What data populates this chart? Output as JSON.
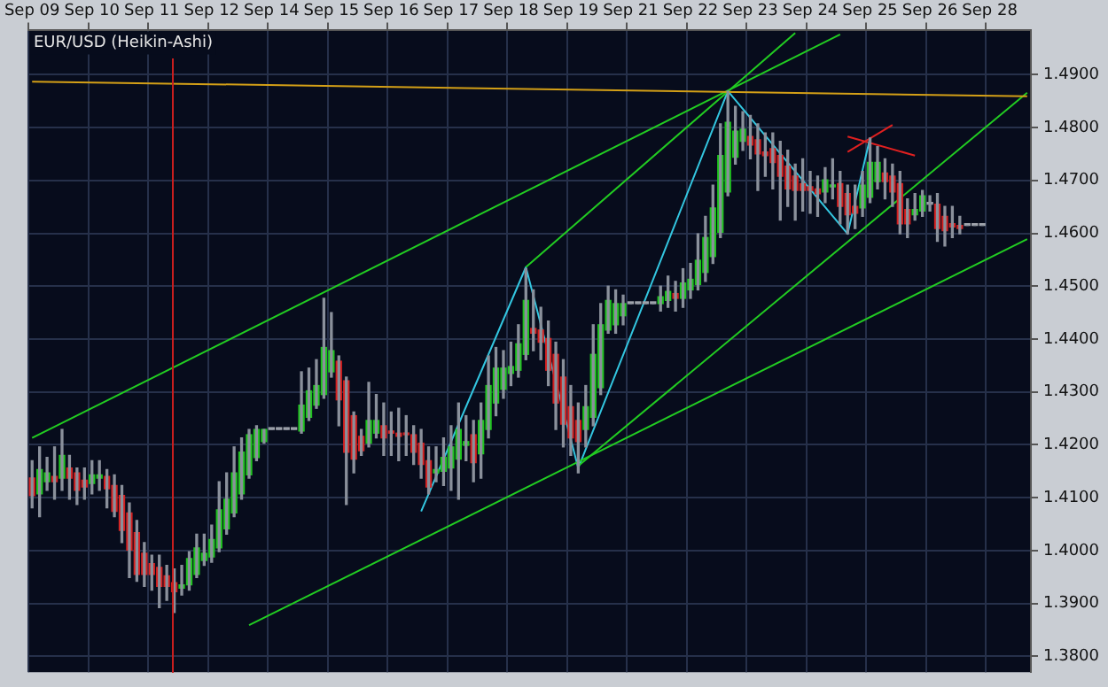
{
  "chart_data": {
    "type": "candlestick",
    "title": "EUR/USD (Heikin-Ashi)",
    "categories": [
      "Sep 09",
      null,
      null,
      null,
      null,
      null,
      null,
      null,
      "Sep 10",
      null,
      null,
      null,
      null,
      null,
      null,
      null,
      "Sep 11",
      null,
      null,
      null,
      null,
      null,
      null,
      null,
      "Sep 12",
      null,
      null,
      null,
      null,
      null,
      null,
      null,
      "Sep 14",
      null,
      null,
      null,
      null,
      null,
      null,
      null,
      "Sep 15",
      null,
      null,
      null,
      null,
      null,
      null,
      null,
      "Sep 16",
      null,
      null,
      null,
      null,
      null,
      null,
      null,
      "Sep 17",
      null,
      null,
      null,
      null,
      null,
      null,
      null,
      "Sep 18",
      null,
      null,
      null,
      null,
      null,
      null,
      null,
      "Sep 19",
      null,
      null,
      null,
      null,
      null,
      null,
      null,
      "Sep 21",
      null,
      null,
      null,
      null,
      null,
      null,
      null,
      "Sep 22",
      null,
      null,
      null,
      null,
      null,
      null,
      null,
      "Sep 23",
      null,
      null,
      null,
      null,
      null,
      null,
      null,
      "Sep 24",
      null,
      null,
      null,
      null,
      null,
      null,
      null,
      "Sep 25",
      null,
      null,
      null,
      null,
      null,
      null,
      null,
      "Sep 26",
      null,
      null,
      null,
      null,
      null,
      null,
      null,
      "Sep 28",
      null,
      null,
      null,
      null,
      null
    ],
    "ohlc": [
      [
        1.4137,
        1.417,
        1.4081,
        1.4104
      ],
      [
        1.4107,
        1.4196,
        1.4064,
        1.4153
      ],
      [
        1.413,
        1.4176,
        1.4114,
        1.4147
      ],
      [
        1.414,
        1.4196,
        1.4097,
        1.413
      ],
      [
        1.4137,
        1.4229,
        1.4114,
        1.418
      ],
      [
        1.4156,
        1.418,
        1.4097,
        1.4137
      ],
      [
        1.4147,
        1.4156,
        1.4087,
        1.4114
      ],
      [
        1.4133,
        1.4156,
        1.4097,
        1.412
      ],
      [
        1.4127,
        1.417,
        1.4107,
        1.4143
      ],
      [
        1.4137,
        1.417,
        1.4114,
        1.4143
      ],
      [
        1.414,
        1.4153,
        1.4081,
        1.4117
      ],
      [
        1.4123,
        1.4143,
        1.4064,
        1.4074
      ],
      [
        1.4104,
        1.4123,
        1.4015,
        1.4038
      ],
      [
        1.4071,
        1.409,
        1.3949,
        1.4001
      ],
      [
        1.4034,
        1.4057,
        1.3942,
        1.3955
      ],
      [
        1.3995,
        1.4015,
        1.3932,
        1.3955
      ],
      [
        1.3975,
        1.3991,
        1.3925,
        1.3955
      ],
      [
        1.3968,
        1.3991,
        1.3892,
        1.3932
      ],
      [
        1.3952,
        1.3972,
        1.3906,
        1.3932
      ],
      [
        1.3939,
        1.3965,
        1.3883,
        1.3922
      ],
      [
        1.3929,
        1.3972,
        1.3916,
        1.3935
      ],
      [
        1.3935,
        1.3998,
        1.3925,
        1.3985
      ],
      [
        1.3955,
        1.4031,
        1.3949,
        1.4005
      ],
      [
        1.3981,
        1.4031,
        1.3972,
        1.3995
      ],
      [
        1.3988,
        1.4048,
        1.3978,
        1.4021
      ],
      [
        1.4005,
        1.413,
        1.3998,
        1.4077
      ],
      [
        1.4041,
        1.4147,
        1.4031,
        1.4097
      ],
      [
        1.4071,
        1.4196,
        1.4064,
        1.4147
      ],
      [
        1.4107,
        1.4213,
        1.4097,
        1.4186
      ],
      [
        1.4143,
        1.4229,
        1.4137,
        1.4219
      ],
      [
        1.4176,
        1.4236,
        1.417,
        1.4229
      ],
      [
        1.4206,
        1.4229,
        1.4203,
        1.4229
      ],
      [
        1.4229,
        1.4229,
        1.4229,
        1.4229
      ],
      [
        1.4229,
        1.4229,
        1.4229,
        1.4229
      ],
      [
        1.4229,
        1.4229,
        1.4229,
        1.4229
      ],
      [
        1.4229,
        1.4229,
        1.4229,
        1.4229
      ],
      [
        1.4226,
        1.4338,
        1.4222,
        1.4275
      ],
      [
        1.4252,
        1.4345,
        1.4246,
        1.4302
      ],
      [
        1.4275,
        1.4361,
        1.4269,
        1.4312
      ],
      [
        1.4295,
        1.4477,
        1.4288,
        1.4384
      ],
      [
        1.4338,
        1.445,
        1.4328,
        1.4378
      ],
      [
        1.4358,
        1.4368,
        1.4236,
        1.4285
      ],
      [
        1.4321,
        1.4328,
        1.4087,
        1.4186
      ],
      [
        1.4255,
        1.4262,
        1.4147,
        1.4173
      ],
      [
        1.4216,
        1.4229,
        1.418,
        1.4189
      ],
      [
        1.4203,
        1.4318,
        1.4196,
        1.4246
      ],
      [
        1.4222,
        1.4295,
        1.4213,
        1.4246
      ],
      [
        1.4236,
        1.4279,
        1.418,
        1.4213
      ],
      [
        1.4226,
        1.4262,
        1.418,
        1.4222
      ],
      [
        1.4222,
        1.4269,
        1.417,
        1.4216
      ],
      [
        1.4222,
        1.4255,
        1.418,
        1.4219
      ],
      [
        1.4219,
        1.4236,
        1.4163,
        1.4186
      ],
      [
        1.4203,
        1.4229,
        1.4137,
        1.4163
      ],
      [
        1.417,
        1.4196,
        1.4107,
        1.412
      ],
      [
        1.4147,
        1.4196,
        1.413,
        1.4153
      ],
      [
        1.415,
        1.4213,
        1.4123,
        1.4176
      ],
      [
        1.4156,
        1.4236,
        1.4114,
        1.4196
      ],
      [
        1.4173,
        1.4279,
        1.4097,
        1.4229
      ],
      [
        1.4199,
        1.4255,
        1.417,
        1.4206
      ],
      [
        1.4219,
        1.4246,
        1.413,
        1.4166
      ],
      [
        1.4183,
        1.4279,
        1.4137,
        1.4246
      ],
      [
        1.4229,
        1.4368,
        1.4213,
        1.4312
      ],
      [
        1.4279,
        1.4384,
        1.4255,
        1.4345
      ],
      [
        1.4305,
        1.4378,
        1.4288,
        1.4345
      ],
      [
        1.4335,
        1.4394,
        1.4312,
        1.4348
      ],
      [
        1.4341,
        1.4427,
        1.4328,
        1.4391
      ],
      [
        1.4371,
        1.4533,
        1.4361,
        1.4473
      ],
      [
        1.442,
        1.4493,
        1.4378,
        1.4411
      ],
      [
        1.4417,
        1.446,
        1.4361,
        1.4394
      ],
      [
        1.4401,
        1.4434,
        1.4312,
        1.4341
      ],
      [
        1.4371,
        1.4394,
        1.4229,
        1.4279
      ],
      [
        1.4328,
        1.4361,
        1.4196,
        1.4239
      ],
      [
        1.4272,
        1.4312,
        1.418,
        1.4213
      ],
      [
        1.4246,
        1.4279,
        1.4147,
        1.4206
      ],
      [
        1.4229,
        1.4312,
        1.4196,
        1.4272
      ],
      [
        1.4252,
        1.4427,
        1.4236,
        1.4371
      ],
      [
        1.4308,
        1.4467,
        1.4295,
        1.4427
      ],
      [
        1.4417,
        1.45,
        1.4411,
        1.4473
      ],
      [
        1.4427,
        1.4493,
        1.4411,
        1.4467
      ],
      [
        1.4444,
        1.4483,
        1.4427,
        1.4467
      ],
      [
        1.4467,
        1.4467,
        1.4467,
        1.4467
      ],
      [
        1.4467,
        1.4467,
        1.4467,
        1.4467
      ],
      [
        1.4467,
        1.4467,
        1.4467,
        1.4467
      ],
      [
        1.4467,
        1.4467,
        1.4467,
        1.4467
      ],
      [
        1.4467,
        1.45,
        1.4453,
        1.448
      ],
      [
        1.4473,
        1.4519,
        1.446,
        1.449
      ],
      [
        1.4486,
        1.4509,
        1.4453,
        1.4477
      ],
      [
        1.4477,
        1.4533,
        1.446,
        1.4506
      ],
      [
        1.4493,
        1.4543,
        1.4477,
        1.4513
      ],
      [
        1.4503,
        1.4599,
        1.4493,
        1.4549
      ],
      [
        1.4526,
        1.4632,
        1.4509,
        1.4592
      ],
      [
        1.4556,
        1.4691,
        1.4543,
        1.4648
      ],
      [
        1.4602,
        1.4807,
        1.4592,
        1.4747
      ],
      [
        1.4678,
        1.4869,
        1.4671,
        1.481
      ],
      [
        1.4744,
        1.484,
        1.4731,
        1.4793
      ],
      [
        1.4774,
        1.483,
        1.4757,
        1.4797
      ],
      [
        1.4783,
        1.4823,
        1.4741,
        1.4767
      ],
      [
        1.4777,
        1.4807,
        1.4681,
        1.475
      ],
      [
        1.4754,
        1.479,
        1.4708,
        1.4747
      ],
      [
        1.476,
        1.479,
        1.4684,
        1.4734
      ],
      [
        1.4747,
        1.4774,
        1.4625,
        1.4708
      ],
      [
        1.4727,
        1.4757,
        1.4651,
        1.4684
      ],
      [
        1.4708,
        1.4731,
        1.4625,
        1.4681
      ],
      [
        1.4694,
        1.4741,
        1.4642,
        1.4681
      ],
      [
        1.4688,
        1.4717,
        1.4638,
        1.4681
      ],
      [
        1.4684,
        1.4708,
        1.4632,
        1.4675
      ],
      [
        1.4678,
        1.4724,
        1.4658,
        1.4701
      ],
      [
        1.4688,
        1.4741,
        1.4665,
        1.4691
      ],
      [
        1.4694,
        1.4717,
        1.4618,
        1.4651
      ],
      [
        1.4675,
        1.4691,
        1.4599,
        1.4635
      ],
      [
        1.4651,
        1.4691,
        1.4609,
        1.4638
      ],
      [
        1.4648,
        1.4717,
        1.4632,
        1.4691
      ],
      [
        1.4668,
        1.478,
        1.4658,
        1.4734
      ],
      [
        1.4698,
        1.4764,
        1.4684,
        1.4734
      ],
      [
        1.4714,
        1.4741,
        1.4665,
        1.4698
      ],
      [
        1.4708,
        1.4731,
        1.4651,
        1.4678
      ],
      [
        1.4694,
        1.4717,
        1.4599,
        1.4618
      ],
      [
        1.4645,
        1.4665,
        1.4592,
        1.4618
      ],
      [
        1.4635,
        1.4675,
        1.4625,
        1.4645
      ],
      [
        1.4642,
        1.4681,
        1.4632,
        1.4671
      ],
      [
        1.4655,
        1.4671,
        1.4642,
        1.4655
      ],
      [
        1.4655,
        1.4675,
        1.4585,
        1.4609
      ],
      [
        1.4632,
        1.4651,
        1.4576,
        1.4605
      ],
      [
        1.4618,
        1.4651,
        1.4592,
        1.4612
      ],
      [
        1.4615,
        1.4632,
        1.4599,
        1.4609
      ],
      [
        1.4615,
        1.4615,
        1.4615,
        1.4615
      ],
      [
        1.4615,
        1.4615,
        1.4615,
        1.4615
      ],
      [
        1.4615,
        1.4615,
        1.4615,
        1.4615
      ],
      null,
      null,
      null,
      null,
      null,
      null
    ],
    "colors": [
      "#d42020",
      "#1fc41f",
      "#1fc41f",
      "#d42020",
      "#1fc41f",
      "#d42020",
      "#d42020",
      "#d42020",
      "#1fc41f",
      "#1fc41f",
      "#d42020",
      "#d42020",
      "#d42020",
      "#d42020",
      "#d42020",
      "#d42020",
      "#d42020",
      "#d42020",
      "#d42020",
      "#d42020",
      "#1fc41f",
      "#1fc41f",
      "#1fc41f",
      "#1fc41f",
      "#1fc41f",
      "#1fc41f",
      "#1fc41f",
      "#1fc41f",
      "#1fc41f",
      "#1fc41f",
      "#1fc41f",
      "#1fc41f",
      "#a0a4ac",
      "#a0a4ac",
      "#a0a4ac",
      "#a0a4ac",
      "#1fc41f",
      "#1fc41f",
      "#1fc41f",
      "#1fc41f",
      "#1fc41f",
      "#d42020",
      "#d42020",
      "#d42020",
      "#d42020",
      "#1fc41f",
      "#1fc41f",
      "#d42020",
      "#d42020",
      "#d42020",
      "#d42020",
      "#d42020",
      "#d42020",
      "#d42020",
      "#1fc41f",
      "#1fc41f",
      "#1fc41f",
      "#1fc41f",
      "#1fc41f",
      "#d42020",
      "#1fc41f",
      "#1fc41f",
      "#1fc41f",
      "#1fc41f",
      "#1fc41f",
      "#1fc41f",
      "#1fc41f",
      "#d42020",
      "#d42020",
      "#d42020",
      "#d42020",
      "#d42020",
      "#d42020",
      "#d42020",
      "#1fc41f",
      "#1fc41f",
      "#1fc41f",
      "#1fc41f",
      "#1fc41f",
      "#1fc41f",
      "#a0a4ac",
      "#a0a4ac",
      "#a0a4ac",
      "#a0a4ac",
      "#1fc41f",
      "#1fc41f",
      "#d42020",
      "#1fc41f",
      "#1fc41f",
      "#1fc41f",
      "#1fc41f",
      "#1fc41f",
      "#1fc41f",
      "#1fc41f",
      "#1fc41f",
      "#1fc41f",
      "#d42020",
      "#d42020",
      "#d42020",
      "#d42020",
      "#d42020",
      "#d42020",
      "#d42020",
      "#d42020",
      "#d42020",
      "#d42020",
      "#1fc41f",
      "#1fc41f",
      "#d42020",
      "#d42020",
      "#d42020",
      "#1fc41f",
      "#1fc41f",
      "#1fc41f",
      "#d42020",
      "#d42020",
      "#d42020",
      "#d42020",
      "#1fc41f",
      "#1fc41f",
      "#a0a4ac",
      "#d42020",
      "#d42020",
      "#d42020",
      "#d42020",
      "#a0a4ac",
      "#a0a4ac",
      "#a0a4ac",
      null,
      null,
      null,
      null,
      null,
      null
    ],
    "series": [
      {
        "type": "line",
        "color": "#d4a017",
        "values": [
          1.4887,
          null,
          null,
          null,
          null,
          null,
          null,
          null,
          null,
          null,
          null,
          null,
          null,
          null,
          null,
          null,
          null,
          null,
          null,
          null,
          null,
          null,
          null,
          null,
          null,
          null,
          null,
          null,
          null,
          null,
          null,
          null,
          null,
          null,
          null,
          null,
          null,
          null,
          null,
          null,
          null,
          null,
          null,
          null,
          null,
          null,
          null,
          null,
          null,
          null,
          null,
          null,
          null,
          null,
          null,
          null,
          null,
          null,
          null,
          null,
          null,
          null,
          null,
          null,
          null,
          null,
          null,
          null,
          null,
          null,
          null,
          null,
          null,
          null,
          null,
          null,
          null,
          null,
          null,
          null,
          null,
          null,
          null,
          null,
          null,
          null,
          null,
          null,
          null,
          null,
          null,
          null,
          null,
          null,
          null,
          null,
          null,
          null,
          null,
          null,
          null,
          null,
          null,
          null,
          null,
          null,
          null,
          null,
          null,
          null,
          null,
          null,
          null,
          null,
          null,
          null,
          null,
          null,
          null,
          null,
          null,
          null,
          null,
          null,
          null,
          null,
          null,
          null,
          null,
          null,
          null,
          null,
          null,
          1.4859
        ]
      },
      {
        "type": "line",
        "color": "#22cc22",
        "values": [
          1.4213,
          null,
          null,
          null,
          null,
          null,
          null,
          null,
          null,
          null,
          null,
          null,
          null,
          null,
          null,
          null,
          null,
          null,
          null,
          null,
          null,
          null,
          null,
          null,
          null,
          null,
          null,
          null,
          null,
          null,
          null,
          null,
          null,
          null,
          null,
          null,
          null,
          null,
          null,
          null,
          null,
          null,
          null,
          null,
          null,
          null,
          null,
          null,
          null,
          null,
          null,
          null,
          null,
          null,
          null,
          null,
          null,
          null,
          null,
          null,
          null,
          null,
          null,
          null,
          null,
          null,
          null,
          null,
          null,
          null,
          null,
          null,
          null,
          null,
          null,
          null,
          null,
          null,
          null,
          null,
          null,
          null,
          null,
          null,
          null,
          null,
          null,
          null,
          null,
          null,
          null,
          null,
          null,
          null,
          null,
          null,
          null,
          null,
          null,
          null,
          null,
          null,
          null,
          null,
          null,
          null,
          null,
          null,
          1.4976,
          null,
          null,
          null,
          null,
          null,
          null,
          null,
          null,
          null,
          null,
          null,
          null,
          null,
          null,
          null,
          null,
          null,
          null,
          null,
          null,
          null,
          null,
          null,
          null,
          null
        ]
      },
      {
        "type": "line",
        "color": "#22cc22",
        "values": [
          null,
          null,
          null,
          null,
          null,
          null,
          null,
          null,
          null,
          null,
          null,
          null,
          null,
          null,
          null,
          null,
          null,
          null,
          null,
          null,
          null,
          null,
          null,
          null,
          null,
          null,
          null,
          null,
          null,
          null,
          null,
          null,
          null,
          null,
          null,
          null,
          null,
          null,
          null,
          null,
          null,
          null,
          null,
          null,
          null,
          null,
          null,
          null,
          null,
          null,
          null,
          null,
          null,
          null,
          null,
          null,
          null,
          null,
          null,
          null,
          null,
          null,
          null,
          null,
          null,
          null,
          1.4536,
          null,
          null,
          null,
          null,
          null,
          null,
          null,
          null,
          null,
          null,
          null,
          null,
          null,
          null,
          null,
          null,
          null,
          null,
          null,
          null,
          null,
          null,
          null,
          null,
          null,
          null,
          null,
          null,
          null,
          null,
          null,
          null,
          null,
          null,
          null,
          1.4979,
          null,
          null,
          null,
          null,
          null,
          null,
          null,
          null,
          null,
          null,
          null,
          null,
          null,
          null,
          null,
          null,
          null,
          null,
          null,
          null,
          null,
          null,
          null,
          null,
          null,
          null,
          null,
          null,
          null,
          null,
          null
        ]
      },
      {
        "type": "line",
        "color": "#22cc22",
        "values": [
          null,
          null,
          null,
          null,
          null,
          null,
          null,
          null,
          null,
          null,
          null,
          null,
          null,
          null,
          null,
          null,
          null,
          null,
          null,
          null,
          null,
          null,
          null,
          null,
          null,
          null,
          null,
          null,
          null,
          1.3859,
          null,
          null,
          null,
          null,
          null,
          null,
          null,
          null,
          null,
          null,
          null,
          null,
          null,
          null,
          null,
          null,
          null,
          null,
          null,
          null,
          null,
          null,
          null,
          null,
          null,
          null,
          null,
          null,
          null,
          null,
          null,
          null,
          null,
          null,
          null,
          null,
          null,
          null,
          null,
          null,
          null,
          null,
          null,
          null,
          null,
          null,
          null,
          null,
          null,
          null,
          null,
          null,
          null,
          null,
          null,
          null,
          null,
          null,
          null,
          null,
          null,
          null,
          null,
          null,
          null,
          null,
          null,
          null,
          null,
          null,
          null,
          null,
          null,
          null,
          null,
          null,
          null,
          null,
          null,
          null,
          null,
          null,
          null,
          null,
          null,
          null,
          null,
          null,
          null,
          null,
          null,
          null,
          null,
          null,
          null,
          null,
          null,
          null,
          null,
          null,
          null,
          null,
          null,
          1.4589
        ]
      },
      {
        "type": "line",
        "color": "#22cc22",
        "values": [
          null,
          null,
          null,
          null,
          null,
          null,
          null,
          null,
          null,
          null,
          null,
          null,
          null,
          null,
          null,
          null,
          null,
          null,
          null,
          null,
          null,
          null,
          null,
          null,
          null,
          null,
          null,
          null,
          null,
          null,
          null,
          null,
          null,
          null,
          null,
          null,
          null,
          null,
          null,
          null,
          null,
          null,
          null,
          null,
          null,
          null,
          null,
          null,
          null,
          null,
          null,
          null,
          null,
          null,
          null,
          null,
          null,
          null,
          null,
          null,
          null,
          null,
          null,
          null,
          null,
          null,
          null,
          null,
          null,
          null,
          null,
          null,
          null,
          1.416,
          null,
          null,
          null,
          null,
          null,
          null,
          null,
          null,
          null,
          null,
          null,
          null,
          null,
          null,
          null,
          null,
          null,
          null,
          null,
          null,
          null,
          null,
          null,
          null,
          null,
          null,
          null,
          null,
          null,
          null,
          null,
          null,
          null,
          null,
          null,
          null,
          null,
          null,
          null,
          null,
          null,
          null,
          null,
          null,
          null,
          null,
          null,
          null,
          null,
          null,
          null,
          null,
          null,
          null,
          null,
          null,
          null,
          null,
          null,
          1.4866
        ]
      },
      {
        "type": "line",
        "color": "#33c6e0",
        "values": [
          null,
          null,
          null,
          null,
          null,
          null,
          null,
          null,
          null,
          null,
          null,
          null,
          null,
          null,
          null,
          null,
          null,
          null,
          null,
          null,
          null,
          null,
          null,
          null,
          null,
          null,
          null,
          null,
          null,
          null,
          null,
          null,
          null,
          null,
          null,
          null,
          null,
          null,
          null,
          null,
          null,
          null,
          null,
          null,
          null,
          null,
          null,
          null,
          null,
          null,
          null,
          null,
          1.4074,
          null,
          null,
          null,
          null,
          null,
          null,
          null,
          null,
          null,
          null,
          null,
          null,
          null,
          1.4536,
          null,
          null,
          null,
          null,
          null,
          null,
          1.4156,
          null,
          null,
          null,
          null,
          null,
          null,
          null,
          null,
          null,
          null,
          null,
          null,
          null,
          null,
          null,
          null,
          null,
          null,
          null,
          1.4869,
          null,
          null,
          null,
          null,
          null,
          null,
          null,
          null,
          null,
          null,
          null,
          null,
          null,
          null,
          null,
          1.4599,
          null,
          null,
          1.478,
          null,
          null,
          null,
          null,
          null,
          null,
          null,
          null,
          null,
          null,
          null,
          null,
          null,
          null,
          null,
          null,
          null,
          null,
          null,
          null,
          null
        ]
      },
      {
        "type": "line",
        "color": "#e02020",
        "values": [
          null,
          null,
          null,
          null,
          null,
          null,
          null,
          null,
          null,
          null,
          null,
          null,
          null,
          null,
          null,
          null,
          null,
          null,
          null,
          null,
          null,
          null,
          null,
          null,
          null,
          null,
          null,
          null,
          null,
          null,
          null,
          null,
          null,
          null,
          null,
          null,
          null,
          null,
          null,
          null,
          null,
          null,
          null,
          null,
          null,
          null,
          null,
          null,
          null,
          null,
          null,
          null,
          null,
          null,
          null,
          null,
          null,
          null,
          null,
          null,
          null,
          null,
          null,
          null,
          null,
          null,
          null,
          null,
          null,
          null,
          null,
          null,
          null,
          null,
          null,
          null,
          null,
          null,
          null,
          null,
          null,
          null,
          null,
          null,
          null,
          null,
          null,
          null,
          null,
          null,
          null,
          null,
          null,
          null,
          null,
          null,
          null,
          null,
          null,
          null,
          null,
          null,
          null,
          null,
          null,
          null,
          null,
          null,
          null,
          1.4783,
          null,
          null,
          null,
          null,
          null,
          null,
          null,
          null,
          1.4747,
          null,
          null,
          null,
          null,
          null,
          null,
          null,
          null,
          null,
          null,
          null,
          null,
          null,
          null,
          null
        ]
      },
      {
        "type": "line",
        "color": "#e02020",
        "values": [
          null,
          null,
          null,
          null,
          null,
          null,
          null,
          null,
          null,
          null,
          null,
          null,
          null,
          null,
          null,
          null,
          null,
          null,
          null,
          null,
          null,
          null,
          null,
          null,
          null,
          null,
          null,
          null,
          null,
          null,
          null,
          null,
          null,
          null,
          null,
          null,
          null,
          null,
          null,
          null,
          null,
          null,
          null,
          null,
          null,
          null,
          null,
          null,
          null,
          null,
          null,
          null,
          null,
          null,
          null,
          null,
          null,
          null,
          null,
          null,
          null,
          null,
          null,
          null,
          null,
          null,
          null,
          null,
          null,
          null,
          null,
          null,
          null,
          null,
          null,
          null,
          null,
          null,
          null,
          null,
          null,
          null,
          null,
          null,
          null,
          null,
          null,
          null,
          null,
          null,
          null,
          null,
          null,
          null,
          null,
          null,
          null,
          null,
          null,
          null,
          null,
          null,
          null,
          null,
          null,
          null,
          null,
          null,
          null,
          1.4754,
          null,
          null,
          null,
          null,
          null,
          1.4805,
          null,
          null,
          null,
          null,
          null,
          null,
          null,
          null,
          null,
          null,
          null,
          null,
          null,
          null,
          null,
          null,
          null,
          null
        ]
      }
    ],
    "ylim": [
      1.377,
      1.4985
    ],
    "yticks": [
      {
        "value": 1.38,
        "label": "1.3800"
      },
      {
        "value": 1.39,
        "label": "1.3900"
      },
      {
        "value": 1.4,
        "label": "1.4000"
      },
      {
        "value": 1.41,
        "label": "1.4100"
      },
      {
        "value": 1.42,
        "label": "1.4200"
      },
      {
        "value": 1.43,
        "label": "1.4300"
      },
      {
        "value": 1.44,
        "label": "1.4400"
      },
      {
        "value": 1.45,
        "label": "1.4500"
      },
      {
        "value": 1.46,
        "label": "1.4600"
      },
      {
        "value": 1.47,
        "label": "1.4700"
      },
      {
        "value": 1.48,
        "label": "1.4800"
      },
      {
        "value": 1.49,
        "label": "1.4900"
      }
    ],
    "grid": true
  }
}
